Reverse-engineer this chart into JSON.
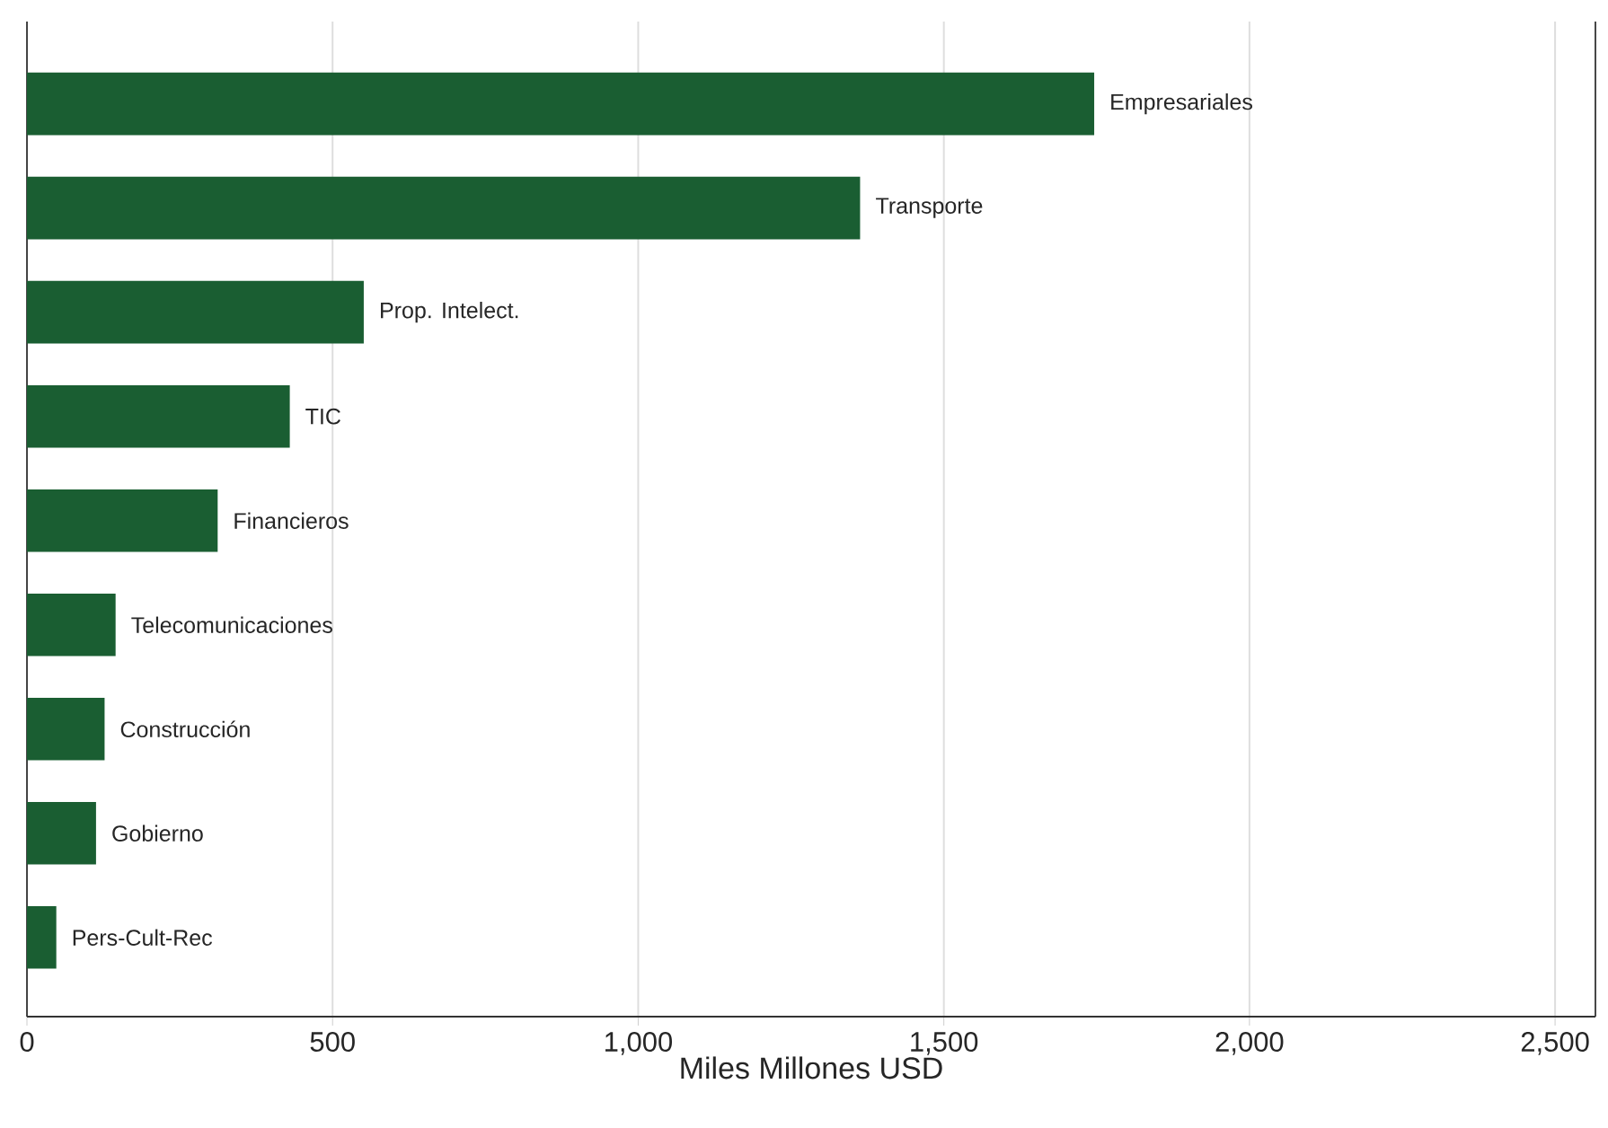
{
  "chart_data": {
    "type": "bar",
    "orientation": "horizontal",
    "xlabel": "Miles Millones USD",
    "categories": [
      "Empresariales",
      "Transporte",
      "Prop. Intelect.",
      "TIC",
      "Financieros",
      "Telecomunicaciones",
      "Construcción",
      "Gobierno",
      "Pers-Cult-Rec"
    ],
    "values": [
      1746,
      1363,
      551,
      430,
      312,
      145,
      127,
      113,
      48
    ],
    "color": "#1a5e32",
    "xlim": [
      0,
      2566
    ],
    "xticks": [
      0,
      500,
      {
        "value": 1000,
        "label": "1,000"
      },
      {
        "value": 1500,
        "label": "1,500"
      },
      {
        "value": 2000,
        "label": "2,000"
      },
      {
        "value": 2500,
        "label": "2,500"
      }
    ],
    "grid": "x"
  }
}
